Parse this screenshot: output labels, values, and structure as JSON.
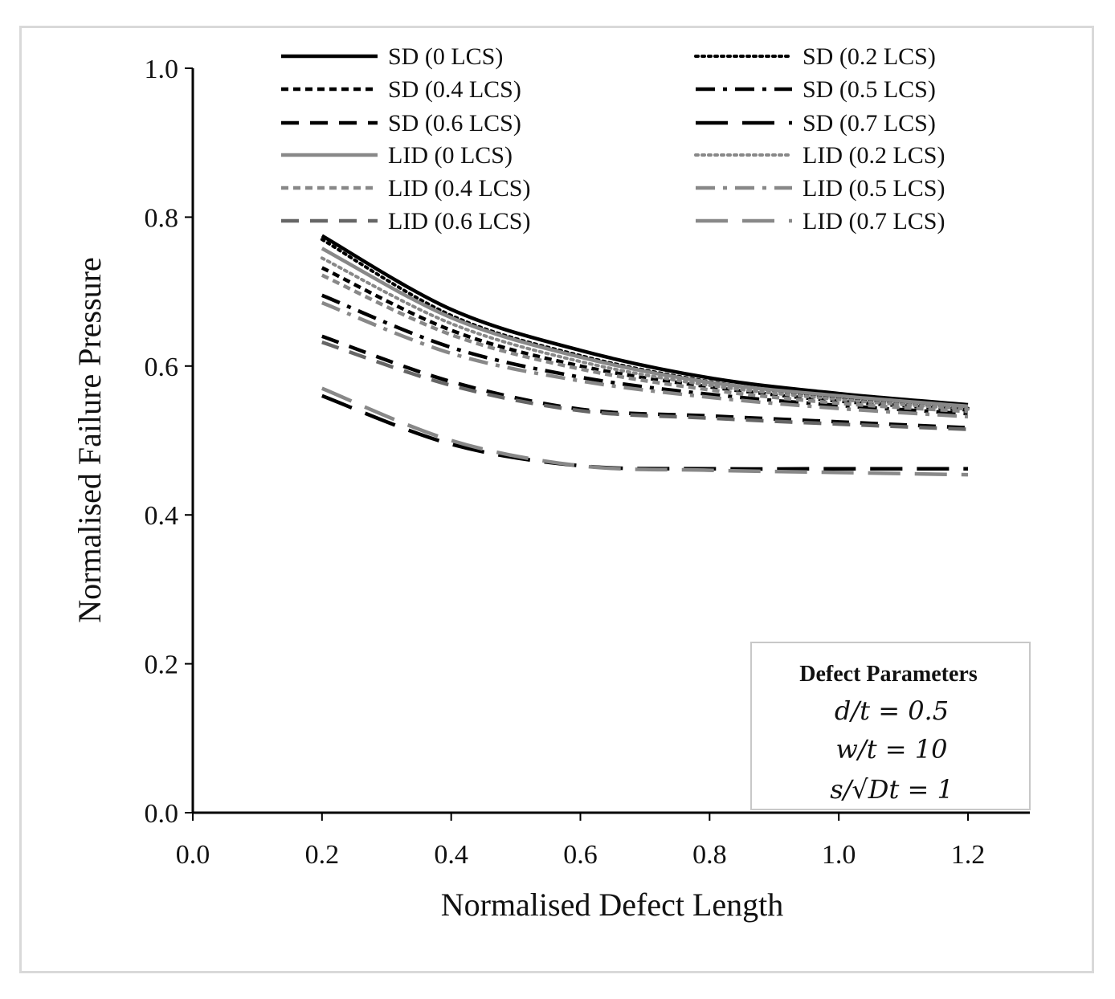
{
  "chart_data": {
    "type": "line",
    "title": "",
    "xlabel": "Normalised Defect Length",
    "ylabel": "Normalised Failure Pressure",
    "xlim": [
      0.0,
      1.3
    ],
    "ylim": [
      0.0,
      1.0
    ],
    "xticks": [
      "0.0",
      "0.2",
      "0.4",
      "0.6",
      "0.8",
      "1.0",
      "1.2"
    ],
    "yticks": [
      "0.0",
      "0.2",
      "0.4",
      "0.6",
      "0.8",
      "1.0"
    ],
    "grid": false,
    "legend_position": "top",
    "x": [
      0.2,
      0.4,
      0.6,
      0.8,
      1.0,
      1.2
    ],
    "series": [
      {
        "name": "SD (0 LCS)",
        "color": "#000000",
        "dash": "solid",
        "values": [
          0.775,
          0.676,
          0.621,
          0.584,
          0.563,
          0.548
        ]
      },
      {
        "name": "SD (0.2 LCS)",
        "color": "#000000",
        "dash": "dotted",
        "values": [
          0.77,
          0.668,
          0.614,
          0.579,
          0.557,
          0.543
        ]
      },
      {
        "name": "SD (0.4 LCS)",
        "color": "#000000",
        "dash": "shortdash",
        "values": [
          0.732,
          0.648,
          0.6,
          0.572,
          0.553,
          0.541
        ]
      },
      {
        "name": "SD (0.5 LCS)",
        "color": "#000000",
        "dash": "dashdot",
        "values": [
          0.695,
          0.625,
          0.585,
          0.562,
          0.547,
          0.536
        ]
      },
      {
        "name": "SD (0.6 LCS)",
        "color": "#000000",
        "dash": "dash",
        "values": [
          0.64,
          0.579,
          0.542,
          0.533,
          0.525,
          0.517
        ]
      },
      {
        "name": "SD (0.7 LCS)",
        "color": "#000000",
        "dash": "longdash",
        "values": [
          0.56,
          0.495,
          0.466,
          0.462,
          0.462,
          0.462
        ]
      },
      {
        "name": "LID (0 LCS)",
        "color": "#888888",
        "dash": "solid",
        "values": [
          0.758,
          0.665,
          0.612,
          0.578,
          0.56,
          0.546
        ]
      },
      {
        "name": "LID (0.2 LCS)",
        "color": "#888888",
        "dash": "dotted",
        "values": [
          0.745,
          0.657,
          0.606,
          0.574,
          0.555,
          0.542
        ]
      },
      {
        "name": "LID (0.4 LCS)",
        "color": "#888888",
        "dash": "shortdash",
        "values": [
          0.722,
          0.642,
          0.596,
          0.568,
          0.55,
          0.539
        ]
      },
      {
        "name": "LID (0.5 LCS)",
        "color": "#888888",
        "dash": "dashdot",
        "values": [
          0.685,
          0.617,
          0.58,
          0.558,
          0.543,
          0.532
        ]
      },
      {
        "name": "LID (0.6 LCS)",
        "color": "#666666",
        "dash": "dash",
        "values": [
          0.632,
          0.574,
          0.54,
          0.53,
          0.522,
          0.515
        ]
      },
      {
        "name": "LID (0.7 LCS)",
        "color": "#888888",
        "dash": "longdash",
        "values": [
          0.57,
          0.5,
          0.466,
          0.46,
          0.457,
          0.454
        ]
      }
    ],
    "annotation": {
      "title": "Defect Parameters",
      "lines": [
        "d/t = 0.5",
        "w/t = 10",
        "s/√Dt = 1"
      ]
    }
  }
}
